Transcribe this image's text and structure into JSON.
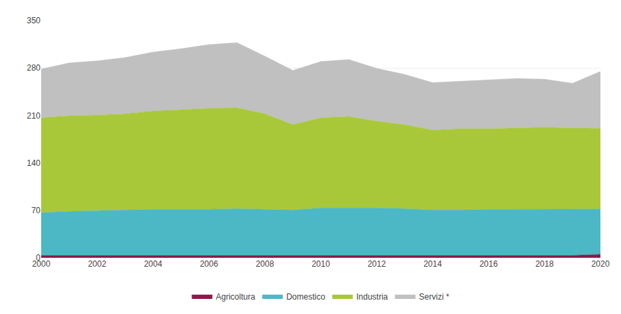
{
  "chart_data": {
    "type": "area",
    "stacked": true,
    "x": [
      2000,
      2001,
      2002,
      2003,
      2004,
      2005,
      2006,
      2007,
      2008,
      2009,
      2010,
      2011,
      2012,
      2013,
      2014,
      2015,
      2016,
      2017,
      2018,
      2019,
      2020
    ],
    "series": [
      {
        "name": "Agricoltura",
        "color": "#8B1A4A",
        "values": [
          3.5,
          3.5,
          3.5,
          3.5,
          3.5,
          3.5,
          3.5,
          3.5,
          3.5,
          3.5,
          3.5,
          3.5,
          3.5,
          3.5,
          3.5,
          3.5,
          3.5,
          3.5,
          3.5,
          3.5,
          5.0
        ]
      },
      {
        "name": "Domestico",
        "color": "#4DB8C5",
        "values": [
          63,
          65,
          66,
          67,
          68,
          68,
          68,
          69,
          68,
          67,
          70,
          70,
          70,
          69,
          67,
          67,
          68,
          68,
          68,
          68,
          67
        ]
      },
      {
        "name": "Industria",
        "color": "#A8C83A",
        "values": [
          140,
          141,
          141,
          142,
          145,
          147,
          149,
          149,
          141,
          126,
          133,
          135,
          128,
          124,
          118,
          120,
          119,
          120,
          121,
          120,
          119
        ]
      },
      {
        "name": "Servizi *",
        "color": "#C0C0C0",
        "values": [
          72,
          78,
          80,
          83,
          87,
          90,
          94,
          96,
          85,
          80,
          83,
          84,
          78,
          74,
          70,
          70,
          72,
          73,
          71,
          66,
          84
        ]
      }
    ],
    "xlim": [
      2000,
      2020
    ],
    "xticks": [
      2000,
      2002,
      2004,
      2006,
      2008,
      2010,
      2012,
      2014,
      2016,
      2018,
      2020
    ],
    "ylim": [
      0,
      350
    ],
    "yticks": [
      0,
      70,
      140,
      210,
      280,
      350
    ],
    "grid": true,
    "legend": "bottom"
  }
}
